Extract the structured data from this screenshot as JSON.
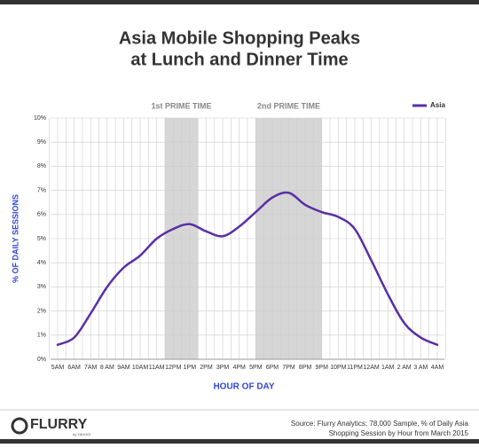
{
  "chart_data": {
    "type": "line",
    "title": [
      "Asia Mobile Shopping Peaks",
      "at Lunch and Dinner Time"
    ],
    "x_label": "HOUR OF DAY",
    "y_label": "% OF DAILY SESSIONS",
    "categories": [
      "5AM",
      "6AM",
      "7AM",
      "8 AM",
      "9AM",
      "10AM",
      "11AM",
      "12PM",
      "1PM",
      "2PM",
      "3PM",
      "4PM",
      "5PM",
      "6PM",
      "7PM",
      "8PM",
      "9PM",
      "10PM",
      "11PM",
      "12AM",
      "1AM",
      "2 AM",
      "3 AM",
      "4AM"
    ],
    "series": [
      {
        "name": "Asia",
        "color": "#5a2ea6",
        "values": [
          0.6,
          0.9,
          1.9,
          3.0,
          3.8,
          4.3,
          5.0,
          5.4,
          5.6,
          5.3,
          5.1,
          5.5,
          6.1,
          6.7,
          6.9,
          6.4,
          6.1,
          5.9,
          5.4,
          4.1,
          2.7,
          1.5,
          0.9,
          0.6
        ]
      }
    ],
    "ylim": [
      0,
      10
    ],
    "yticks": [
      {
        "value": 0,
        "label": "0%"
      },
      {
        "value": 1,
        "label": "1%"
      },
      {
        "value": 2,
        "label": "2%"
      },
      {
        "value": 3,
        "label": "3%"
      },
      {
        "value": 4,
        "label": "4%"
      },
      {
        "value": 5,
        "label": "5%"
      },
      {
        "value": 6,
        "label": "6%"
      },
      {
        "value": 7,
        "label": "7%"
      },
      {
        "value": 8,
        "label": "8%"
      },
      {
        "value": 9,
        "label": "9%"
      },
      {
        "value": 10,
        "label": "10%"
      }
    ],
    "grid": true,
    "legend": "top-right",
    "highlights": [
      {
        "label": "1st PRIME TIME",
        "span": [
          6.5,
          8.5
        ]
      },
      {
        "label": "2nd PRIME TIME",
        "span": [
          12,
          16
        ]
      }
    ],
    "logo": "FLURRY",
    "logo_sub": "by YAHOO!",
    "source": [
      "Source: Flurry Analytics; 78,000 Sample, % of Daily Asia",
      "Shopping Session by Hour from March 2015"
    ]
  }
}
